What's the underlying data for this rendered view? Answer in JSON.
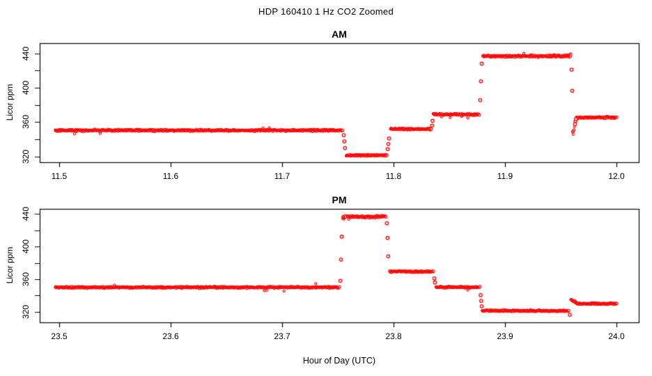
{
  "title": "HDP  160410  1 Hz CO2 Zoomed",
  "colors": {
    "points": "#ff0000",
    "axis": "#000000",
    "background": "#ffffff"
  },
  "chart_data": {
    "type": "scatter",
    "marker": "open-circle",
    "sample_rate_hz": 1,
    "xlabel": "Hour of Day (UTC)",
    "panels": [
      {
        "label": "AM",
        "ylabel": "Licor ppm",
        "xlim": [
          11.4825,
          12.02
        ],
        "ylim": [
          313.2,
          451.9
        ],
        "x_ticks": [
          {
            "value": 11.5,
            "label": "11.5"
          },
          {
            "value": 11.6,
            "label": "11.6"
          },
          {
            "value": 11.7,
            "label": "11.7"
          },
          {
            "value": 11.8,
            "label": "11.8"
          },
          {
            "value": 11.9,
            "label": "11.9"
          },
          {
            "value": 12.0,
            "label": "12.0"
          }
        ],
        "y_ticks_major": [
          {
            "value": 320,
            "label": "320"
          },
          {
            "value": 360,
            "label": "360"
          },
          {
            "value": 400,
            "label": "400"
          },
          {
            "value": 440,
            "label": "440"
          }
        ],
        "y_ticks_minor": [
          340,
          380,
          420
        ],
        "segments": [
          {
            "t0": 11.4965,
            "t1": 11.7547,
            "y0": 350.3,
            "y1": 350.3,
            "jitter": 1.3
          },
          {
            "t0": 11.7575,
            "t1": 11.7942,
            "y0": 321.2,
            "y1": 321.2,
            "jitter": 1.2
          },
          {
            "t0": 11.7972,
            "t1": 11.834,
            "y0": 351.8,
            "y1": 351.8,
            "jitter": 1.2
          },
          {
            "t0": 11.8355,
            "t1": 11.877,
            "y0": 368.8,
            "y1": 368.8,
            "jitter": 1.2
          },
          {
            "t0": 11.88,
            "t1": 11.9585,
            "y0": 436.8,
            "y1": 436.8,
            "jitter": 1.5
          },
          {
            "t0": 11.956,
            "t1": 11.9592,
            "y0": 438.0,
            "y1": 438.0,
            "jitter": 2.2
          },
          {
            "t0": 11.9606,
            "t1": 11.9625,
            "y0": 347.0,
            "y1": 352.0,
            "jitter": 3.5
          },
          {
            "t0": 11.964,
            "t1": 12.0005,
            "y0": 365.3,
            "y1": 365.3,
            "jitter": 1.2
          }
        ],
        "transition_points": [
          [
            11.7553,
            344.8
          ],
          [
            11.7558,
            337.5
          ],
          [
            11.7564,
            329.8
          ],
          [
            11.7947,
            328.5
          ],
          [
            11.7953,
            334.5
          ],
          [
            11.7959,
            341.0
          ],
          [
            11.8345,
            356.0
          ],
          [
            11.835,
            361.5
          ],
          [
            11.8777,
            385.5
          ],
          [
            11.8784,
            407.5
          ],
          [
            11.8791,
            428.0
          ],
          [
            11.9597,
            421.0
          ],
          [
            11.9603,
            396.5
          ],
          [
            11.9628,
            357.5
          ],
          [
            11.9632,
            361.0
          ],
          [
            11.9636,
            363.5
          ]
        ]
      },
      {
        "label": "PM",
        "ylabel": "Licor ppm",
        "xlim": [
          23.4825,
          24.02
        ],
        "ylim": [
          307.2,
          446.0
        ],
        "x_ticks": [
          {
            "value": 23.5,
            "label": "23.5"
          },
          {
            "value": 23.6,
            "label": "23.6"
          },
          {
            "value": 23.7,
            "label": "23.7"
          },
          {
            "value": 23.8,
            "label": "23.8"
          },
          {
            "value": 23.9,
            "label": "23.9"
          },
          {
            "value": 24.0,
            "label": "24.0"
          }
        ],
        "y_ticks_major": [
          {
            "value": 320,
            "label": "320"
          },
          {
            "value": 360,
            "label": "360"
          },
          {
            "value": 400,
            "label": "400"
          },
          {
            "value": 440,
            "label": "440"
          }
        ],
        "y_ticks_minor": [
          340,
          380,
          420
        ],
        "segments": [
          {
            "t0": 23.4965,
            "t1": 23.7516,
            "y0": 350.0,
            "y1": 350.0,
            "jitter": 1.3
          },
          {
            "t0": 23.7545,
            "t1": 23.7935,
            "y0": 436.3,
            "y1": 436.3,
            "jitter": 1.6
          },
          {
            "t0": 23.7545,
            "t1": 23.7572,
            "y0": 434.8,
            "y1": 435.8,
            "jitter": 2.4
          },
          {
            "t0": 23.7965,
            "t1": 23.836,
            "y0": 369.3,
            "y1": 369.3,
            "jitter": 1.2
          },
          {
            "t0": 23.838,
            "t1": 23.8775,
            "y0": 350.2,
            "y1": 350.2,
            "jitter": 1.2
          },
          {
            "t0": 23.8795,
            "t1": 23.9575,
            "y0": 321.3,
            "y1": 321.3,
            "jitter": 1.2
          },
          {
            "t0": 23.959,
            "t1": 23.9645,
            "y0": 335.3,
            "y1": 330.8,
            "jitter": 1.6
          },
          {
            "t0": 23.9645,
            "t1": 24.0005,
            "y0": 330.0,
            "y1": 330.0,
            "jitter": 1.2
          }
        ],
        "transition_points": [
          [
            23.7522,
            358.0
          ],
          [
            23.7528,
            384.0
          ],
          [
            23.7535,
            412.0
          ],
          [
            23.794,
            428.5
          ],
          [
            23.7946,
            410.5
          ],
          [
            23.7952,
            388.0
          ],
          [
            23.8366,
            361.0
          ],
          [
            23.8371,
            356.0
          ],
          [
            23.8781,
            340.5
          ],
          [
            23.8786,
            333.5
          ],
          [
            23.8791,
            327.0
          ],
          [
            23.9581,
            316.5
          ]
        ]
      }
    ]
  }
}
